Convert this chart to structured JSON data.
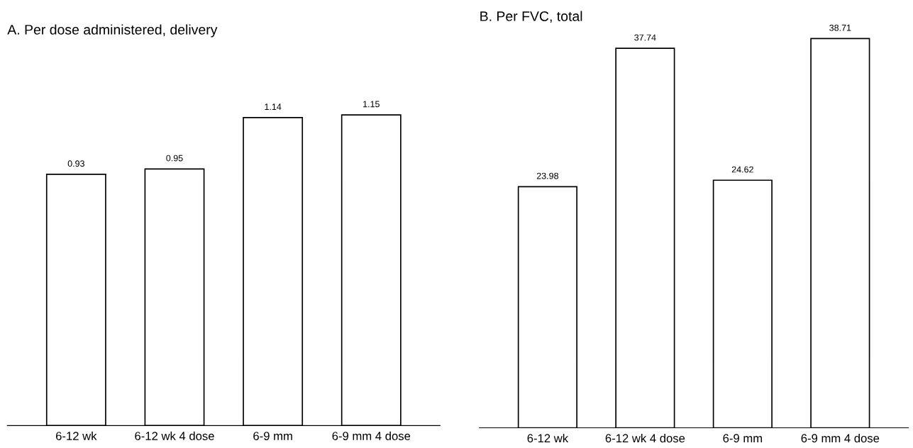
{
  "chart_data": [
    {
      "type": "bar",
      "title": "A. Per dose administered, delivery",
      "categories": [
        "6-12 wk",
        "6-12 wk 4 dose",
        "6-9 mm",
        "6-9 mm 4 dose"
      ],
      "values": [
        0.93,
        0.95,
        1.14,
        1.15
      ],
      "color": "#ffffff",
      "data_labels": true,
      "grid": false,
      "legend": false
    },
    {
      "type": "bar",
      "title": "B. Per FVC, total",
      "categories": [
        "6-12 wk",
        "6-12 wk 4 dose",
        "6-9 mm",
        "6-9 mm 4 dose"
      ],
      "values": [
        23.98,
        37.74,
        24.62,
        38.71
      ],
      "color": "#ffffff",
      "data_labels": true,
      "grid": false,
      "legend": false
    }
  ]
}
